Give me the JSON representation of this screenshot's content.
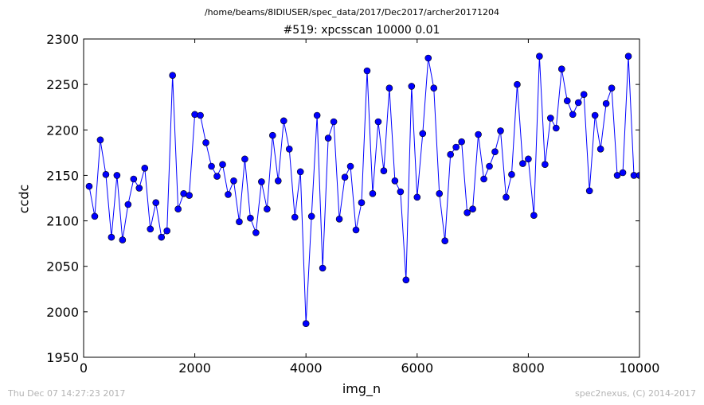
{
  "header": {
    "suptitle": "/home/beams/8IDIUSER/spec_data/2017/Dec2017/archer20171204"
  },
  "footer": {
    "timestamp": "Thu Dec 07 14:27:23 2017",
    "credit": "spec2nexus, (C) 2014-2017"
  },
  "chart_data": {
    "type": "line",
    "title": "#519: xpcsscan 10000 0.01",
    "xlabel": "img_n",
    "ylabel": "ccdc",
    "xlim": [
      0,
      10000
    ],
    "ylim": [
      1950,
      2300
    ],
    "xticks": [
      0,
      2000,
      4000,
      6000,
      8000,
      10000
    ],
    "yticks": [
      1950,
      2000,
      2050,
      2100,
      2150,
      2200,
      2250,
      2300
    ],
    "grid": false,
    "line_color": "#0000ff",
    "marker": "circle",
    "series": [
      {
        "x": [
          100,
          200,
          300,
          400,
          500,
          600,
          700,
          800,
          900,
          1000,
          1100,
          1200,
          1300,
          1400,
          1500,
          1600,
          1700,
          1800,
          1900,
          2000,
          2100,
          2200,
          2300,
          2400,
          2500,
          2600,
          2700,
          2800,
          2900,
          3000,
          3100,
          3200,
          3300,
          3400,
          3500,
          3600,
          3700,
          3800,
          3900,
          4000,
          4100,
          4200,
          4300,
          4400,
          4500,
          4600,
          4700,
          4800,
          4900,
          5000,
          5100,
          5200,
          5300,
          5400,
          5500,
          5600,
          5700,
          5800,
          5900,
          6000,
          6100,
          6200,
          6300,
          6400,
          6500,
          6600,
          6700,
          6800,
          6900,
          7000,
          7100,
          7200,
          7300,
          7400,
          7500,
          7600,
          7700,
          7800,
          7900,
          8000,
          8100,
          8200,
          8300,
          8400,
          8500,
          8600,
          8700,
          8800,
          8900,
          9000,
          9100,
          9200,
          9300,
          9400,
          9500,
          9600,
          9700,
          9800,
          9900,
          10000
        ],
        "y": [
          2138,
          2105,
          2189,
          2151,
          2082,
          2150,
          2079,
          2118,
          2146,
          2136,
          2158,
          2091,
          2120,
          2082,
          2089,
          2260,
          2113,
          2130,
          2128,
          2217,
          2216,
          2186,
          2160,
          2149,
          2162,
          2129,
          2144,
          2099,
          2168,
          2103,
          2087,
          2143,
          2113,
          2194,
          2144,
          2210,
          2179,
          2104,
          2154,
          1987,
          2105,
          2216,
          2048,
          2191,
          2209,
          2102,
          2148,
          2160,
          2090,
          2120,
          2265,
          2130,
          2209,
          2155,
          2246,
          2144,
          2132,
          2035,
          2248,
          2126,
          2196,
          2279,
          2246,
          2130,
          2078,
          2173,
          2181,
          2187,
          2109,
          2113,
          2195,
          2146,
          2160,
          2176,
          2199,
          2126,
          2151,
          2250,
          2163,
          2168,
          2106,
          2281,
          2162,
          2213,
          2202,
          2267,
          2232,
          2217,
          2230,
          2239,
          2133,
          2216,
          2179,
          2229,
          2246,
          2150,
          2153,
          2281,
          2150,
          2150
        ]
      }
    ]
  }
}
